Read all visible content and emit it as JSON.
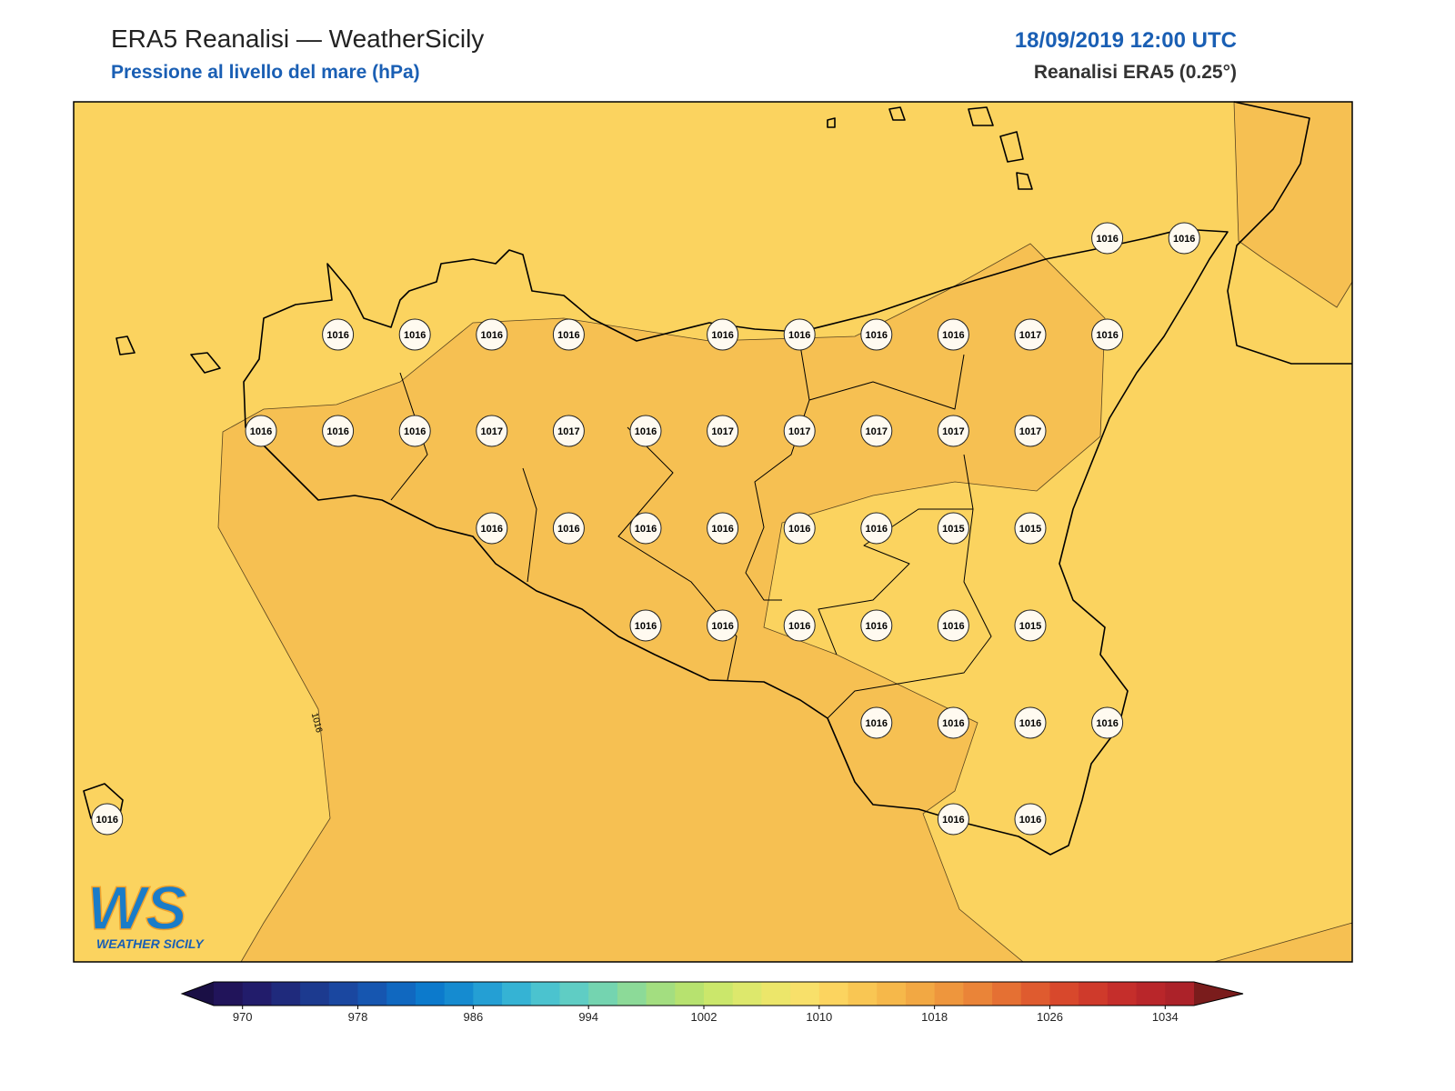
{
  "header": {
    "title": "ERA5 Reanalisi — WeatherSicily",
    "subtitle": "Pressione al livello del mare (hPa)",
    "datetime": "18/09/2019 12:00 UTC",
    "source": "Reanalisi ERA5 (0.25°)"
  },
  "map": {
    "stations": [
      1016,
      1016,
      1016,
      1016,
      1016,
      1016,
      1016,
      1016,
      1016,
      1016,
      1017,
      1016,
      1016,
      1016,
      1016,
      1017,
      1017,
      1016,
      1017,
      1017,
      1017,
      1017,
      1017,
      1016,
      1016,
      1016,
      1016,
      1016,
      1016,
      1015,
      1015,
      1016,
      1016,
      1016,
      1016,
      1016,
      1015,
      1016,
      1016,
      1016,
      1016,
      1016,
      1016,
      1016
    ],
    "contour_labels": [
      1016
    ]
  },
  "colorbar": {
    "range": [
      968,
      1036
    ],
    "ticks": [
      970,
      978,
      986,
      994,
      1002,
      1010,
      1018,
      1026,
      1034
    ],
    "under_color": "#1a0f45",
    "over_color": "#7a1c1c",
    "colors": [
      "#21145a",
      "#221c6b",
      "#1f2a7c",
      "#1c3a8f",
      "#1a47a0",
      "#1656b0",
      "#1068c0",
      "#0c7acc",
      "#158bd0",
      "#249fd4",
      "#35b3d4",
      "#4bc3cf",
      "#5fcdc4",
      "#74d4b0",
      "#8cda98",
      "#a3de80",
      "#b7e26f",
      "#cbe76b",
      "#dde86c",
      "#ece66a",
      "#f8e06a",
      "#fcd45f",
      "#f9c653",
      "#f6b84a",
      "#f2a843",
      "#ee963d",
      "#ea8438",
      "#e57033",
      "#df5b2f",
      "#d8482c",
      "#cf3a2b",
      "#c52e2b",
      "#b9262a",
      "#ac2229"
    ]
  },
  "logo": {
    "mark": "WS",
    "text": "WEATHER SICILY"
  }
}
